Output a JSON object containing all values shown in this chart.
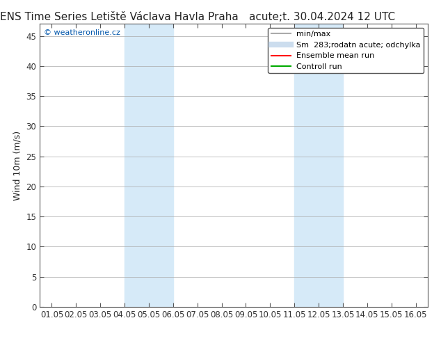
{
  "title_left": "ENS Time Series Letiště Václava Havla Praha",
  "title_right": "acute;t. 30.04.2024 12 UTC",
  "ylabel": "Wind 10m (m/s)",
  "watermark": "© weatheronline.cz",
  "x_labels": [
    "01.05",
    "02.05",
    "03.05",
    "04.05",
    "05.05",
    "06.05",
    "07.05",
    "08.05",
    "09.05",
    "10.05",
    "11.05",
    "12.05",
    "13.05",
    "14.05",
    "15.05",
    "16.05"
  ],
  "x_ticks": [
    0,
    1,
    2,
    3,
    4,
    5,
    6,
    7,
    8,
    9,
    10,
    11,
    12,
    13,
    14,
    15
  ],
  "ylim": [
    0,
    47
  ],
  "yticks": [
    0,
    5,
    10,
    15,
    20,
    25,
    30,
    35,
    40,
    45
  ],
  "shaded_regions": [
    {
      "x_start": 3,
      "x_end": 5
    },
    {
      "x_start": 10,
      "x_end": 12
    }
  ],
  "shaded_color": "#d6eaf8",
  "bg_color": "#ffffff",
  "plot_bg_color": "#ffffff",
  "grid_color": "#aaaaaa",
  "legend_items": [
    {
      "label": "min/max",
      "color": "#aaaaaa",
      "lw": 1.5,
      "style": "solid"
    },
    {
      "label": "Sm  283;rodatn acute; odchylka",
      "color": "#ccddee",
      "lw": 6,
      "style": "solid"
    },
    {
      "label": "Ensemble mean run",
      "color": "#ff0000",
      "lw": 1.5,
      "style": "solid"
    },
    {
      "label": "Controll run",
      "color": "#00aa00",
      "lw": 1.5,
      "style": "solid"
    }
  ],
  "border_color": "#555555",
  "tick_color": "#333333",
  "font_size_title": 11,
  "font_size_axis": 9,
  "font_size_tick": 8.5,
  "font_size_legend": 8,
  "font_size_watermark": 8
}
